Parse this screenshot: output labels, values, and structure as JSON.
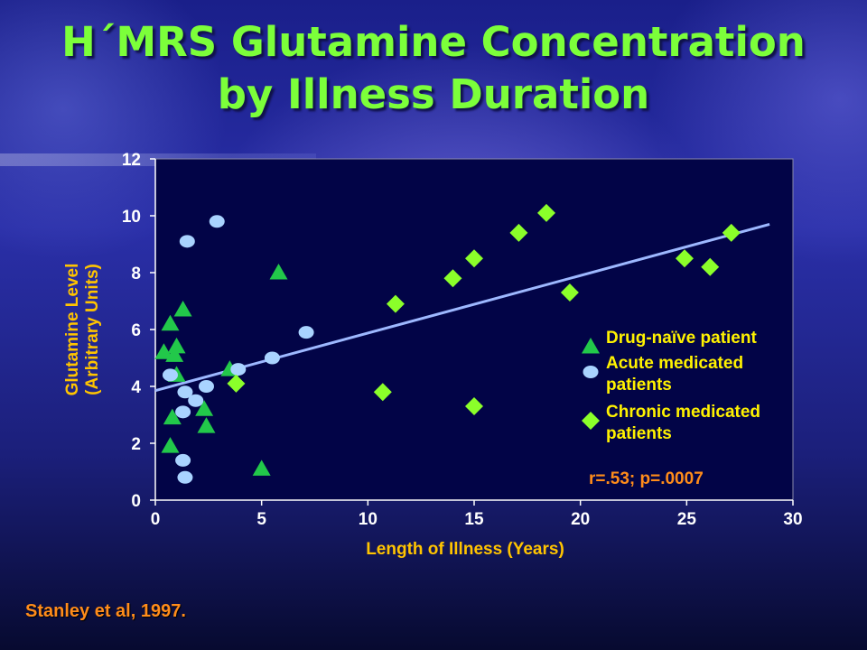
{
  "slide": {
    "title_line1": "H´MRS Glutamine Concentration",
    "title_line2": "by Illness Duration",
    "citation": "Stanley et al, 1997."
  },
  "chart_data": {
    "type": "scatter",
    "title": "H´MRS Glutamine Concentration by Illness Duration",
    "xlabel": "Length of Illness (Years)",
    "ylabel_line1": "Glutamine Level",
    "ylabel_line2": "(Arbitrary Units)",
    "xlim": [
      0,
      30
    ],
    "ylim": [
      0,
      12
    ],
    "x_ticks": [
      0,
      5,
      10,
      15,
      20,
      25,
      30
    ],
    "y_ticks": [
      0,
      2,
      4,
      6,
      8,
      10,
      12
    ],
    "grid": false,
    "legend_position": "right",
    "series": [
      {
        "name": "Drug-naïve patient",
        "marker": "triangle",
        "color": "#22C84A",
        "points": [
          [
            0.4,
            5.2
          ],
          [
            0.7,
            6.2
          ],
          [
            0.7,
            1.9
          ],
          [
            0.8,
            2.9
          ],
          [
            0.9,
            5.1
          ],
          [
            1.0,
            5.4
          ],
          [
            1.0,
            4.4
          ],
          [
            1.3,
            6.7
          ],
          [
            2.3,
            3.2
          ],
          [
            2.4,
            2.6
          ],
          [
            3.5,
            4.6
          ],
          [
            5.0,
            1.1
          ],
          [
            5.8,
            8.0
          ]
        ]
      },
      {
        "name": "Acute medicated patients",
        "marker": "circle",
        "color": "#A9D3FF",
        "points": [
          [
            0.7,
            4.4
          ],
          [
            1.3,
            3.1
          ],
          [
            1.3,
            1.4
          ],
          [
            1.4,
            0.8
          ],
          [
            1.4,
            3.8
          ],
          [
            1.5,
            9.1
          ],
          [
            1.9,
            3.5
          ],
          [
            2.4,
            4.0
          ],
          [
            2.9,
            9.8
          ],
          [
            3.9,
            4.6
          ],
          [
            5.5,
            5.0
          ],
          [
            7.1,
            5.9
          ]
        ]
      },
      {
        "name": "Chronic medicated patients",
        "marker": "diamond",
        "color": "#8BFF2A",
        "points": [
          [
            3.8,
            4.1
          ],
          [
            10.7,
            3.8
          ],
          [
            11.3,
            6.9
          ],
          [
            14.0,
            7.8
          ],
          [
            15.0,
            8.5
          ],
          [
            15.0,
            3.3
          ],
          [
            17.1,
            9.4
          ],
          [
            18.4,
            10.1
          ],
          [
            19.5,
            7.3
          ],
          [
            24.9,
            8.5
          ],
          [
            26.1,
            8.2
          ],
          [
            27.1,
            9.4
          ]
        ]
      }
    ],
    "regression": {
      "x": [
        0,
        28.9
      ],
      "y": [
        3.85,
        9.7
      ],
      "color": "#9DB8FF"
    },
    "annotation": "r=.53; p=.0007",
    "legend_labels": [
      [
        "Drug-naïve patient"
      ],
      [
        "Acute medicated",
        "patients"
      ],
      [
        "Chronic medicated",
        "patients"
      ]
    ],
    "colors": {
      "plot_bg": "#020447",
      "axis_text": "#FFFFFF",
      "axis_title": "#FFC400",
      "legend_text": "#FFF200",
      "annotation": "#FF8C1A"
    }
  }
}
